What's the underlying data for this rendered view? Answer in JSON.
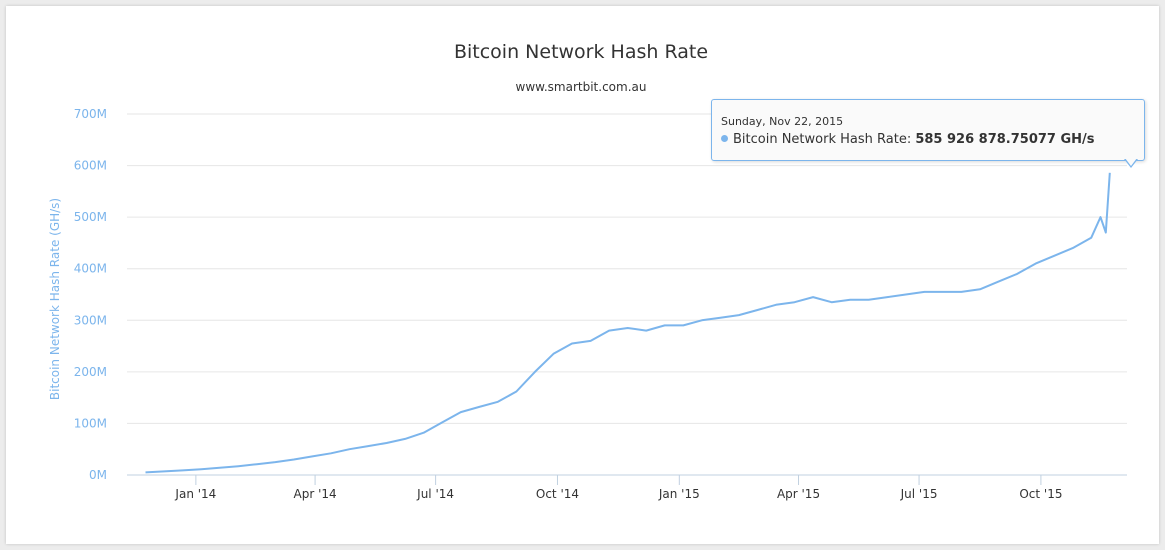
{
  "chart_data": {
    "type": "line",
    "title": "Bitcoin Network Hash Rate",
    "subtitle": "www.smartbit.com.au",
    "xlabel": "",
    "ylabel": "Bitcoin Network Hash Rate (GH/s)",
    "ylim": [
      0,
      700000000
    ],
    "y_ticks": [
      {
        "value": 0,
        "label": "0M"
      },
      {
        "value": 100000000,
        "label": "100M"
      },
      {
        "value": 200000000,
        "label": "200M"
      },
      {
        "value": 300000000,
        "label": "300M"
      },
      {
        "value": 400000000,
        "label": "400M"
      },
      {
        "value": 500000000,
        "label": "500M"
      },
      {
        "value": 600000000,
        "label": "600M"
      },
      {
        "value": 700000000,
        "label": "700M"
      }
    ],
    "x_ticks": [
      {
        "date": "2014-01-01",
        "label": "Jan '14"
      },
      {
        "date": "2014-04-01",
        "label": "Apr '14"
      },
      {
        "date": "2014-07-01",
        "label": "Jul '14"
      },
      {
        "date": "2014-10-01",
        "label": "Oct '14"
      },
      {
        "date": "2015-01-01",
        "label": "Jan '15"
      },
      {
        "date": "2015-04-01",
        "label": "Apr '15"
      },
      {
        "date": "2015-07-01",
        "label": "Jul '15"
      },
      {
        "date": "2015-10-01",
        "label": "Oct '15"
      }
    ],
    "grid": true,
    "legend": "none",
    "series_color": "#7cb5ec",
    "series": [
      {
        "x": [
          "2013-11-24",
          "2013-12-08",
          "2013-12-22",
          "2014-01-05",
          "2014-01-19",
          "2014-02-02",
          "2014-02-16",
          "2014-03-02",
          "2014-03-16",
          "2014-03-30",
          "2014-04-13",
          "2014-04-27",
          "2014-05-11",
          "2014-05-25",
          "2014-06-08",
          "2014-06-22",
          "2014-07-06",
          "2014-07-20",
          "2014-08-03",
          "2014-08-17",
          "2014-08-31",
          "2014-09-14",
          "2014-09-28",
          "2014-10-12",
          "2014-10-26",
          "2014-11-09",
          "2014-11-23",
          "2014-12-07",
          "2014-12-21",
          "2015-01-04",
          "2015-01-18",
          "2015-02-01",
          "2015-02-15",
          "2015-03-01",
          "2015-03-15",
          "2015-03-29",
          "2015-04-12",
          "2015-04-26",
          "2015-05-10",
          "2015-05-24",
          "2015-06-07",
          "2015-06-21",
          "2015-07-05",
          "2015-07-19",
          "2015-08-02",
          "2015-08-16",
          "2015-08-30",
          "2015-09-13",
          "2015-09-27",
          "2015-10-11",
          "2015-10-25",
          "2015-11-08",
          "2015-11-15",
          "2015-11-19",
          "2015-11-22"
        ],
        "values": [
          5000000,
          7000000,
          9000000,
          11000000,
          14000000,
          17000000,
          21000000,
          25000000,
          30000000,
          36000000,
          42000000,
          50000000,
          56000000,
          62000000,
          70000000,
          82000000,
          102000000,
          122000000,
          132000000,
          142000000,
          162000000,
          200000000,
          235000000,
          255000000,
          260000000,
          280000000,
          285000000,
          280000000,
          290000000,
          290000000,
          300000000,
          305000000,
          310000000,
          320000000,
          330000000,
          335000000,
          345000000,
          335000000,
          340000000,
          340000000,
          345000000,
          350000000,
          355000000,
          355000000,
          355000000,
          360000000,
          375000000,
          390000000,
          410000000,
          425000000,
          440000000,
          460000000,
          500000000,
          470000000,
          585926878.75077
        ]
      }
    ]
  },
  "tooltip": {
    "date": "Sunday, Nov 22, 2015",
    "series_name": "Bitcoin Network Hash Rate:",
    "value": "585 926 878.75077 GH/s"
  }
}
